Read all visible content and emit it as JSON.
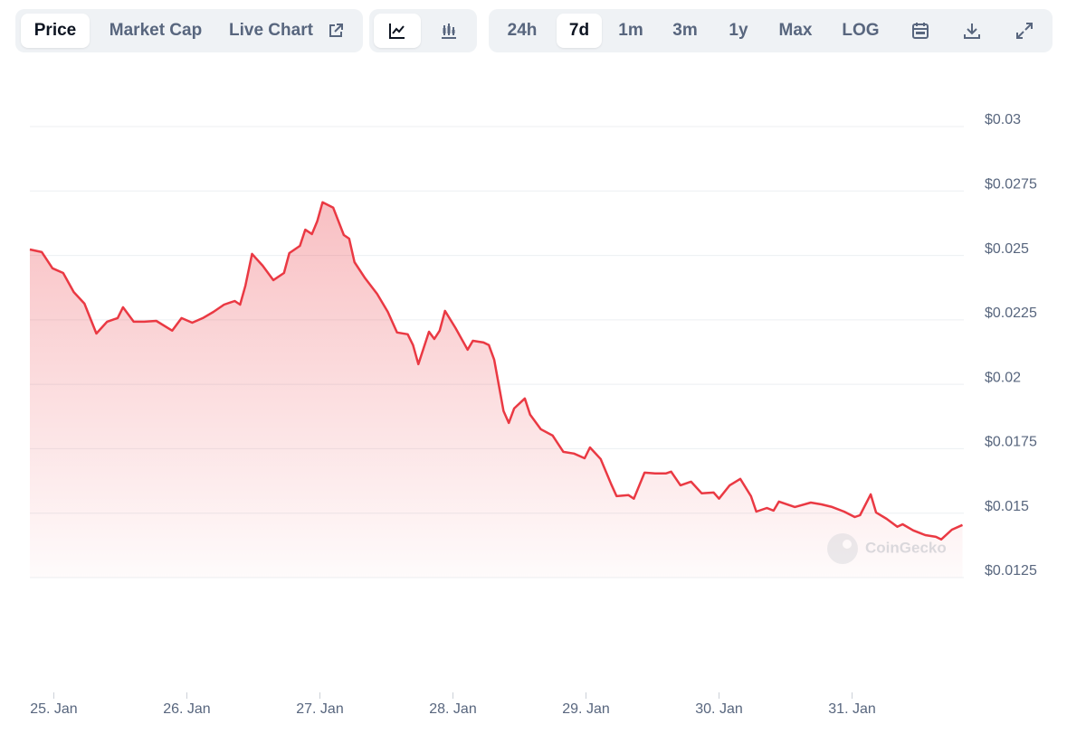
{
  "toolbar": {
    "tabs": [
      "Price",
      "Market Cap",
      "Live Chart"
    ],
    "ranges": [
      "24h",
      "7d",
      "1m",
      "3m",
      "1y",
      "Max",
      "LOG"
    ]
  },
  "watermark": "CoinGecko",
  "chart_data": {
    "type": "area",
    "color": "#ea3943",
    "grid": true,
    "x": [
      24.82,
      24.91,
      24.99,
      25.07,
      25.15,
      25.23,
      25.32,
      25.4,
      25.48,
      25.52,
      25.6,
      25.68,
      25.77,
      25.89,
      25.96,
      26.04,
      26.12,
      26.2,
      26.28,
      26.36,
      26.4,
      26.44,
      26.49,
      26.57,
      26.65,
      26.73,
      26.77,
      26.85,
      26.89,
      26.94,
      26.98,
      27.02,
      27.1,
      27.18,
      27.22,
      27.26,
      27.34,
      27.43,
      27.51,
      27.58,
      27.66,
      27.7,
      27.74,
      27.82,
      27.86,
      27.9,
      27.94,
      28.02,
      28.11,
      28.15,
      28.23,
      28.27,
      28.31,
      28.35,
      28.38,
      28.42,
      28.46,
      28.54,
      28.58,
      28.66,
      28.75,
      28.83,
      28.91,
      28.99,
      29.03,
      29.11,
      29.19,
      29.23,
      29.32,
      29.36,
      29.44,
      29.52,
      29.6,
      29.64,
      29.71,
      29.79,
      29.87,
      29.96,
      30.0,
      30.08,
      30.16,
      30.24,
      30.28,
      30.36,
      30.41,
      30.45,
      30.57,
      30.69,
      30.77,
      30.85,
      30.94,
      31.02,
      31.06,
      31.14,
      31.18,
      31.26,
      31.34,
      31.38,
      31.46,
      31.55,
      31.63,
      31.67,
      31.75,
      31.83
    ],
    "values": [
      0.02523,
      0.02513,
      0.0245,
      0.02432,
      0.02358,
      0.02313,
      0.02197,
      0.02243,
      0.02257,
      0.02299,
      0.02243,
      0.02243,
      0.02246,
      0.02208,
      0.02257,
      0.02239,
      0.02257,
      0.02281,
      0.02309,
      0.02323,
      0.02309,
      0.02383,
      0.02506,
      0.0246,
      0.02404,
      0.02432,
      0.02509,
      0.02537,
      0.026,
      0.02583,
      0.02632,
      0.02706,
      0.02685,
      0.02579,
      0.02565,
      0.02474,
      0.02411,
      0.02351,
      0.02281,
      0.02201,
      0.02194,
      0.02152,
      0.02078,
      0.02204,
      0.02176,
      0.02208,
      0.02285,
      0.02218,
      0.02134,
      0.02169,
      0.02162,
      0.02152,
      0.02095,
      0.01983,
      0.01896,
      0.0185,
      0.01906,
      0.01945,
      0.01882,
      0.01826,
      0.01801,
      0.01738,
      0.01731,
      0.01713,
      0.01755,
      0.0171,
      0.01612,
      0.01566,
      0.0157,
      0.01556,
      0.01657,
      0.01654,
      0.01654,
      0.01661,
      0.01608,
      0.01622,
      0.01577,
      0.0158,
      0.01556,
      0.01608,
      0.01633,
      0.01566,
      0.01506,
      0.0152,
      0.0151,
      0.01545,
      0.01524,
      0.01541,
      0.01534,
      0.01524,
      0.01506,
      0.01485,
      0.01492,
      0.01573,
      0.01503,
      0.01478,
      0.01447,
      0.01457,
      0.01433,
      0.01415,
      0.01408,
      0.01398,
      0.01436,
      0.01454
    ],
    "xlim": [
      24.82,
      31.84
    ],
    "xticks": [
      {
        "value": 25,
        "label": "25. Jan"
      },
      {
        "value": 26,
        "label": "26. Jan"
      },
      {
        "value": 27,
        "label": "27. Jan"
      },
      {
        "value": 28,
        "label": "28. Jan"
      },
      {
        "value": 29,
        "label": "29. Jan"
      },
      {
        "value": 30,
        "label": "30. Jan"
      },
      {
        "value": 31,
        "label": "31. Jan"
      }
    ],
    "ylim": [
      0.0125,
      0.03
    ],
    "yticks": [
      {
        "value": 0.0125,
        "label": "$0.0125"
      },
      {
        "value": 0.015,
        "label": "$0.015"
      },
      {
        "value": 0.0175,
        "label": "$0.0175"
      },
      {
        "value": 0.02,
        "label": "$0.02"
      },
      {
        "value": 0.0225,
        "label": "$0.0225"
      },
      {
        "value": 0.025,
        "label": "$0.025"
      },
      {
        "value": 0.0275,
        "label": "$0.0275"
      },
      {
        "value": 0.03,
        "label": "$0.03"
      }
    ]
  }
}
